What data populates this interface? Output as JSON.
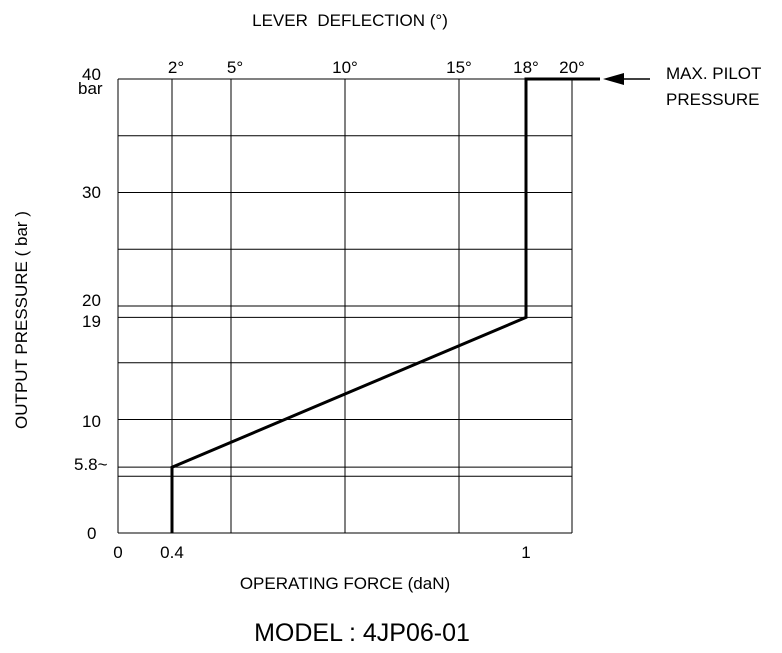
{
  "chart_data": {
    "type": "line",
    "title": "MODEL : 4JP06-01",
    "top_axis_label": "LEVER  DEFLECTION (°)",
    "xlabel": "OPERATING FORCE (daN)",
    "ylabel": "OUTPUT PRESSURE ( bar )",
    "ylim": [
      0,
      40
    ],
    "grid": true,
    "x_ticks": [
      {
        "label": "0",
        "value": 0
      },
      {
        "label": "0.4",
        "value": 0.4
      },
      {
        "label": "1",
        "value": 1
      }
    ],
    "y_ticks": [
      {
        "label": "0",
        "value": 0
      },
      {
        "label": "5.8~",
        "value": 5.8
      },
      {
        "label": "10",
        "value": 10
      },
      {
        "label": "19",
        "value": 19
      },
      {
        "label": "20",
        "value": 20
      },
      {
        "label": "30",
        "value": 30
      },
      {
        "label": "40",
        "value": 40
      }
    ],
    "y_unit_label": "bar",
    "top_ticks": [
      {
        "label": "2°",
        "value": 2
      },
      {
        "label": "5°",
        "value": 5
      },
      {
        "label": "10°",
        "value": 10
      },
      {
        "label": "15°",
        "value": 15
      },
      {
        "label": "18°",
        "value": 18
      },
      {
        "label": "20°",
        "value": 20
      }
    ],
    "series": [
      {
        "points": [
          {
            "deflection": 2,
            "force": 0.4,
            "pressure": 0
          },
          {
            "deflection": 2,
            "force": 0.4,
            "pressure": 5.8
          },
          {
            "deflection": 18,
            "force": 1,
            "pressure": 19
          },
          {
            "deflection": 18,
            "force": 1,
            "pressure": 40
          },
          {
            "deflection": 20,
            "force": 1,
            "pressure": 40
          }
        ]
      }
    ],
    "annotation": {
      "lines": [
        "MAX. PILOT",
        "PRESSURE"
      ],
      "pressure": 40
    }
  }
}
